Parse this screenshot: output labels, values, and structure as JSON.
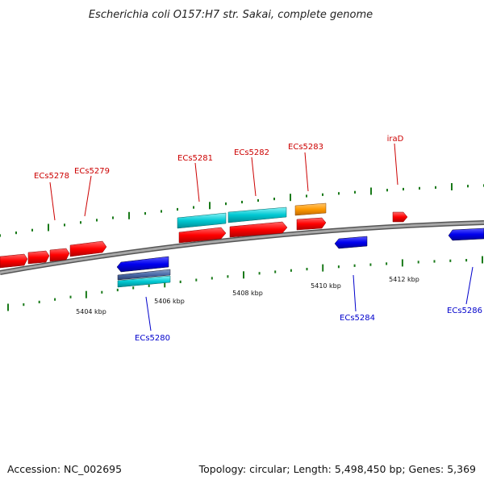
{
  "title": "Escherichia coli O157:H7 str. Sakai, complete genome",
  "footer": {
    "accession": "Accession: NC_002695",
    "summary": "Topology: circular; Length: 5,498,450 bp; Genes: 5,369"
  },
  "colors": {
    "forward_cds": "#ff0000",
    "reverse_cds": "#0000ee",
    "forward_rna": "#00c8d2",
    "reverse_rna": "#00c8d2",
    "other_feature": "#ff9900",
    "backbone": "#808080",
    "tick": "#1a7a1a",
    "forward_label": "#cc0000",
    "reverse_label": "#0000cc"
  },
  "ticks": [
    "5404 kbp",
    "5406 kbp",
    "5408 kbp",
    "5410 kbp",
    "5412 kbp"
  ],
  "labels": {
    "forward": [
      "ECs5278",
      "ECs5279",
      "ECs5281",
      "ECs5282",
      "ECs5283",
      "iraD"
    ],
    "reverse": [
      "ECs5280",
      "ECs5284",
      "ECs5286"
    ]
  }
}
